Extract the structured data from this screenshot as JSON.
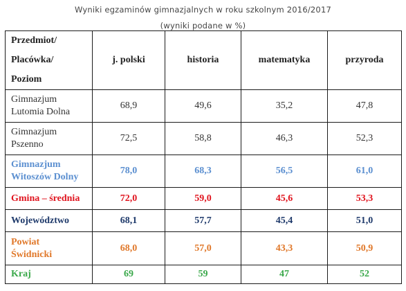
{
  "title": "Wyniki egzaminów gimnazjalnych w roku szkolnym 2016/2017",
  "subtitle": "(wyniki podane w %)",
  "header": {
    "corner_lines": [
      "Przedmiot/",
      "Placówka/",
      "Poziom"
    ],
    "columns": [
      "j. polski",
      "historia",
      "matematyka",
      "przyroda"
    ]
  },
  "rows": [
    {
      "label": [
        "Gimnazjum",
        "Lutomia Dolna"
      ],
      "values": [
        "68,9",
        "49,6",
        "35,2",
        "47,8"
      ],
      "color": "#333333",
      "bold": false
    },
    {
      "label": [
        "Gimnazjum",
        "Pszenno"
      ],
      "values": [
        "72,5",
        "58,8",
        "46,3",
        "52,3"
      ],
      "color": "#333333",
      "bold": false
    },
    {
      "label": [
        "Gimnazjum",
        "Witoszów Dolny"
      ],
      "values": [
        "78,0",
        "68,3",
        "56,5",
        "61,0"
      ],
      "color": "#5b8fd0",
      "bold": true
    },
    {
      "label": [
        "Gmina – średnia"
      ],
      "values": [
        "72,0",
        "59,0",
        "45,6",
        "53,3"
      ],
      "color": "#e0141e",
      "bold": true
    },
    {
      "label": [
        "Województwo"
      ],
      "values": [
        "68,1",
        "57,7",
        "45,4",
        "51,0"
      ],
      "color": "#1f3a6b",
      "bold": true
    },
    {
      "label": [
        "Powiat",
        "Świdnicki"
      ],
      "values": [
        "68,0",
        "57,0",
        "43,3",
        "50,9"
      ],
      "color": "#e0782a",
      "bold": true
    },
    {
      "label": [
        "Kraj"
      ],
      "values": [
        "69",
        "59",
        "47",
        "52"
      ],
      "color": "#3aa84a",
      "bold": true
    }
  ]
}
